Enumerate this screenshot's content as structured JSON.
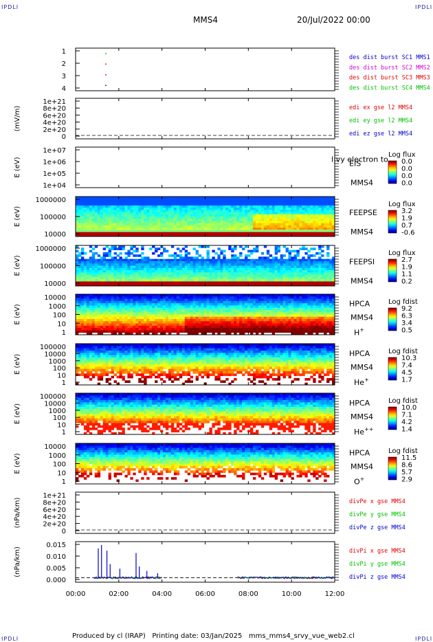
{
  "header": {
    "corner_label": "IPDLI",
    "title": "MMS4",
    "date": "20/Jul/2022 00:00"
  },
  "footer": {
    "text": "Produced by cl (IRAP)   Printing date: 03/Jan/2025   mms_mms4_srvy_vue_web2.cl"
  },
  "colors": {
    "red": "#e00000",
    "green": "#00c000",
    "blue": "#0000d0",
    "magenta": "#d000d0",
    "frame": "#000000"
  },
  "chart_data": [
    {
      "type": "scatter",
      "id": "burst",
      "ylabel": "",
      "ylim": [
        0.5,
        4.5
      ],
      "y_ticks": [
        "1",
        "2",
        "3",
        "4"
      ],
      "legend": [
        {
          "text": "des dist burst SC1 MMS1",
          "color": "#0000d0"
        },
        {
          "text": "des dist burst SC2 MMS2",
          "color": "#d000d0"
        },
        {
          "text": "des dist burst SC3 MMS3",
          "color": "#e00000"
        },
        {
          "text": "des dist burst SC4 MMS4",
          "color": "#00c000"
        }
      ],
      "points": [
        {
          "x": 1.4,
          "y": 4,
          "color": "#00c000"
        },
        {
          "x": 1.4,
          "y": 3,
          "color": "#e00000"
        },
        {
          "x": 1.4,
          "y": 2,
          "color": "#e00000"
        },
        {
          "x": 1.4,
          "y": 1,
          "color": "#0000d0"
        }
      ]
    },
    {
      "type": "line",
      "id": "edi",
      "ylabel": "(mV/m)",
      "y_ticks": [
        "1e+21",
        "8e+20",
        "6e+20",
        "4e+20",
        "2e+20",
        "0"
      ],
      "ylim": [
        0,
        1e+21
      ],
      "legend": [
        {
          "text": "edi ex gse l2 MMS4",
          "color": "#e00000"
        },
        {
          "text": "edi ey gse l2 MMS4",
          "color": "#00c000"
        },
        {
          "text": "edi ez gse l2 MMS4",
          "color": "#0000d0"
        }
      ]
    },
    {
      "type": "heatmap",
      "id": "eis",
      "ylabel": "E (eV)",
      "y_ticks": [
        "1e+07",
        "1e+06",
        "1e+05",
        "1e+04"
      ],
      "side_labels": [
        "EIS",
        "MMS4"
      ],
      "overlay_text": "l|vy electron to",
      "colorbar_title": "Log flux",
      "colorbar_ticks": [
        "0.0",
        "0.0",
        "0.0",
        "0.0"
      ]
    },
    {
      "type": "heatmap",
      "id": "feepse",
      "ylabel": "E (eV)",
      "y_ticks": [
        "1000000",
        "100000",
        "10000"
      ],
      "side_labels": [
        "FEEPSE",
        "MMS4"
      ],
      "colorbar_title": "Log flux",
      "colorbar_ticks": [
        "3.2",
        "1.9",
        "0.7",
        "-0.6"
      ]
    },
    {
      "type": "heatmap",
      "id": "feepsi",
      "ylabel": "E (eV)",
      "y_ticks": [
        "1000000",
        "100000",
        "10000"
      ],
      "side_labels": [
        "FEEPSI",
        "MMS4"
      ],
      "colorbar_title": "Log flux",
      "colorbar_ticks": [
        "2.7",
        "1.9",
        "1.1",
        "0.2"
      ]
    },
    {
      "type": "heatmap",
      "id": "hpca_h",
      "ylabel": "E (eV)",
      "y_ticks": [
        "10000",
        "1000",
        "100",
        "10",
        "1"
      ],
      "side_labels": [
        "HPCA",
        "MMS4"
      ],
      "species": "H",
      "species_sup": "+",
      "colorbar_title": "Log fdist",
      "colorbar_ticks": [
        "9.2",
        "6.3",
        "3.4",
        "0.5"
      ]
    },
    {
      "type": "heatmap",
      "id": "hpca_he",
      "ylabel": "E (eV)",
      "y_ticks": [
        "100000",
        "10000",
        "1000",
        "100",
        "10",
        "1"
      ],
      "side_labels": [
        "HPCA",
        "MMS4"
      ],
      "species": "He",
      "species_sup": "+",
      "colorbar_title": "Log fdist",
      "colorbar_ticks": [
        "10.3",
        "7.4",
        "4.5",
        "1.7"
      ]
    },
    {
      "type": "heatmap",
      "id": "hpca_he2",
      "ylabel": "E (eV)",
      "y_ticks": [
        "100000",
        "10000",
        "1000",
        "100",
        "10",
        "1"
      ],
      "side_labels": [
        "HPCA",
        "MMS4"
      ],
      "species": "He",
      "species_sup": "++",
      "colorbar_title": "Log fdist",
      "colorbar_ticks": [
        "10.0",
        "7.1",
        "4.2",
        "1.4"
      ]
    },
    {
      "type": "heatmap",
      "id": "hpca_o",
      "ylabel": "E (eV)",
      "y_ticks": [
        "10000",
        "1000",
        "100",
        "10",
        "1"
      ],
      "side_labels": [
        "HPCA",
        "MMS4"
      ],
      "species": "O",
      "species_sup": "+",
      "colorbar_title": "Log fdist",
      "colorbar_ticks": [
        "11.5",
        "8.6",
        "5.7",
        "2.9"
      ]
    },
    {
      "type": "line",
      "id": "divpe",
      "ylabel": "(nPa/km)",
      "y_ticks": [
        "1e+21",
        "8e+20",
        "6e+20",
        "4e+20",
        "2e+20",
        "0"
      ],
      "ylim": [
        0,
        1e+21
      ],
      "legend": [
        {
          "text": "divPe x gse MMS4",
          "color": "#e00000"
        },
        {
          "text": "divPe y gse MMS4",
          "color": "#00c000"
        },
        {
          "text": "divPe z gse MMS4",
          "color": "#0000d0"
        }
      ]
    },
    {
      "type": "line",
      "id": "divpi",
      "ylabel": "(nPa/km)",
      "y_ticks": [
        "0.015",
        "0.010",
        "0.005",
        "0.000"
      ],
      "ylim": [
        -0.002,
        0.016
      ],
      "legend": [
        {
          "text": "divPi x gse MMS4",
          "color": "#e00000"
        },
        {
          "text": "divPi y gse MMS4",
          "color": "#00c000"
        },
        {
          "text": "divPi z gse MMS4",
          "color": "#0000d0"
        }
      ],
      "segments": [
        {
          "x_start": 0.85,
          "x_end": 4.0,
          "approx_baseline": 0.0
        },
        {
          "x_start": 7.5,
          "x_end": 12.0,
          "approx_baseline": 0.0
        }
      ],
      "spikes": [
        {
          "x": 1.05,
          "y": 0.013
        },
        {
          "x": 1.2,
          "y": 0.0145
        },
        {
          "x": 1.45,
          "y": 0.012
        },
        {
          "x": 1.6,
          "y": 0.006
        },
        {
          "x": 2.05,
          "y": 0.004
        },
        {
          "x": 2.8,
          "y": 0.011
        },
        {
          "x": 2.95,
          "y": 0.005
        },
        {
          "x": 3.3,
          "y": 0.003
        },
        {
          "x": 3.8,
          "y": 0.002
        }
      ]
    }
  ],
  "x_axis": {
    "xlim": [
      0,
      12
    ],
    "tick_labels": [
      "00:00",
      "02:00",
      "04:00",
      "06:00",
      "08:00",
      "10:00",
      "12:00"
    ]
  }
}
